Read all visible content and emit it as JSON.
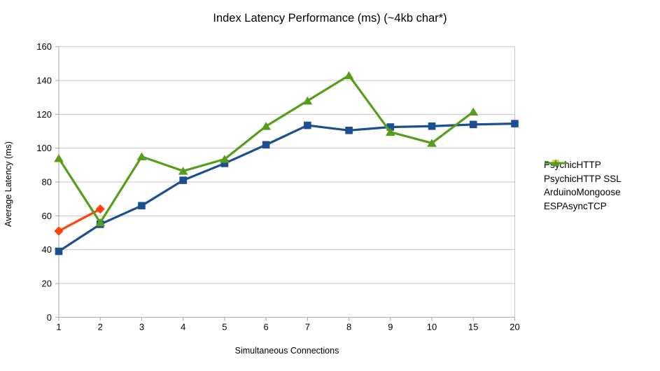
{
  "chart_data": {
    "type": "line",
    "title": "Index Latency Performance (ms) (~4kb char*)",
    "xlabel": "Simultaneous Connections",
    "ylabel": "Average Latency (ms)",
    "categories": [
      "1",
      "2",
      "3",
      "4",
      "5",
      "6",
      "7",
      "8",
      "9",
      "10",
      "15",
      "20"
    ],
    "ylim": [
      0,
      160
    ],
    "ytick_step": 20,
    "grid": "horizontal",
    "legend_position": "right",
    "series": [
      {
        "name": "PsychicHTTP",
        "color": "#1b4f91",
        "marker": "square",
        "values": [
          39,
          55,
          66,
          81,
          91,
          102,
          113.5,
          110.5,
          112.5,
          113,
          114,
          114.5
        ]
      },
      {
        "name": "PsychicHTTP SSL",
        "color": "#ff420e",
        "marker": "diamond",
        "values": [
          51,
          64,
          null,
          null,
          null,
          null,
          null,
          null,
          null,
          null,
          null,
          null
        ]
      },
      {
        "name": "ArduinoMongoose",
        "color": "#ffd320",
        "marker": "triangle-down",
        "values": [
          null,
          null,
          null,
          null,
          null,
          null,
          null,
          null,
          null,
          null,
          null,
          null
        ]
      },
      {
        "name": "ESPAsyncTCP",
        "color": "#579d1c",
        "marker": "triangle-up",
        "values": [
          94,
          56,
          95,
          86.5,
          93.5,
          113,
          128,
          143,
          109.5,
          103,
          121.5,
          null
        ]
      }
    ],
    "style": {
      "grid_color": "#c6c6c6",
      "axis_color": "#a6a6a6",
      "text_color": "#000000",
      "background": "#ffffff"
    }
  }
}
